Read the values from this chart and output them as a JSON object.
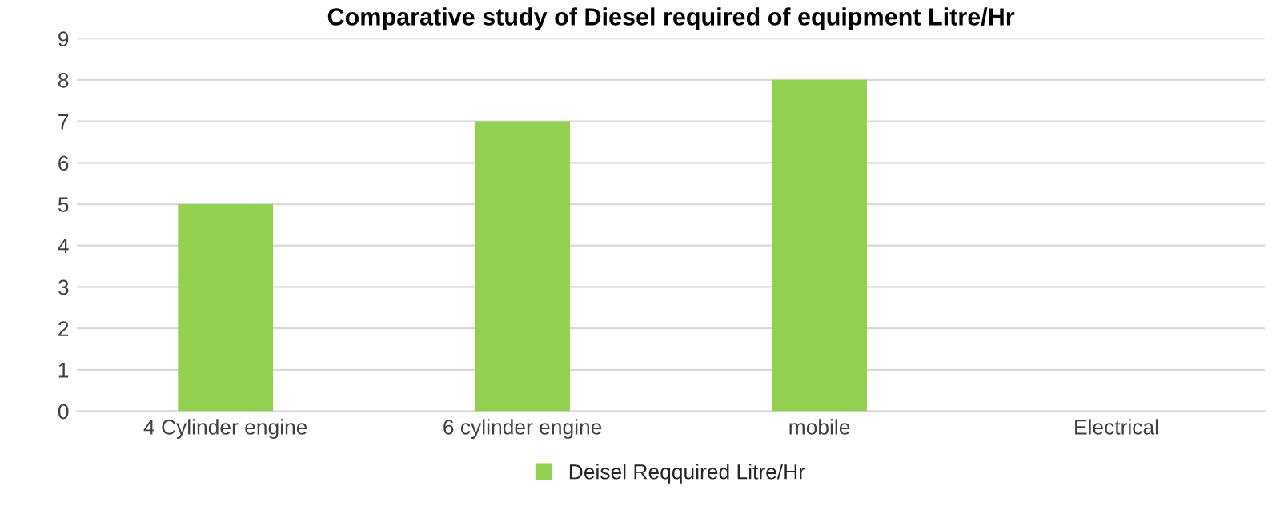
{
  "chart_data": {
    "type": "bar",
    "title": "Comparative study of Diesel required of equipment Litre/Hr",
    "categories": [
      "4 Cylinder engine",
      "6 cylinder engine",
      "mobile",
      "Electrical"
    ],
    "series": [
      {
        "name": "Deisel Reqquired Litre/Hr",
        "color": "#92d050",
        "values": [
          5,
          7,
          8,
          null
        ]
      }
    ],
    "ylim": [
      0,
      9
    ],
    "yticks": [
      0,
      1,
      2,
      3,
      4,
      5,
      6,
      7,
      8,
      9
    ],
    "grid": "y",
    "legend": "bottom"
  }
}
